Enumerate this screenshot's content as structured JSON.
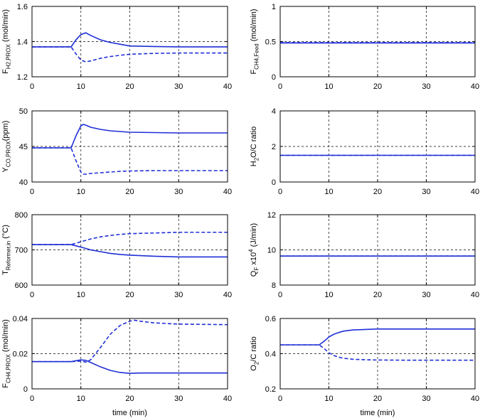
{
  "chart_data": [
    {
      "type": "line",
      "xlim": [
        0,
        40
      ],
      "ylim": [
        1.2,
        1.6
      ],
      "xticks": [
        "0",
        "10",
        "20",
        "30",
        "40"
      ],
      "yticks": [
        "1.2",
        "1.4",
        "1.6"
      ],
      "ylabel": "F_{H2,PROX} (mol/min)",
      "xlabel": "",
      "grid": true,
      "color": "#1f2fd6",
      "series": [
        {
          "style": "solid",
          "x": [
            0,
            8,
            9,
            10,
            11,
            12,
            14,
            16,
            18,
            20,
            25,
            30,
            40
          ],
          "y": [
            1.37,
            1.37,
            1.41,
            1.44,
            1.45,
            1.435,
            1.41,
            1.395,
            1.385,
            1.375,
            1.372,
            1.37,
            1.37
          ]
        },
        {
          "style": "dashed",
          "x": [
            0,
            8,
            9,
            10,
            11,
            12,
            14,
            16,
            18,
            20,
            25,
            30,
            40
          ],
          "y": [
            1.37,
            1.37,
            1.33,
            1.295,
            1.285,
            1.29,
            1.305,
            1.315,
            1.322,
            1.328,
            1.333,
            1.335,
            1.335
          ]
        }
      ]
    },
    {
      "type": "line",
      "xlim": [
        0,
        40
      ],
      "ylim": [
        0,
        1
      ],
      "xticks": [
        "0",
        "10",
        "20",
        "30",
        "40"
      ],
      "yticks": [
        "0",
        "0.5",
        "1"
      ],
      "ylabel": "F_{CH4,Feed} (mol/min)",
      "xlabel": "",
      "grid": true,
      "color": "#1f2fd6",
      "series": [
        {
          "style": "solid",
          "x": [
            0,
            40
          ],
          "y": [
            0.48,
            0.48
          ]
        },
        {
          "style": "dashed",
          "x": [
            0,
            40
          ],
          "y": [
            0.485,
            0.485
          ]
        }
      ]
    },
    {
      "type": "line",
      "xlim": [
        0,
        40
      ],
      "ylim": [
        40,
        50
      ],
      "xticks": [
        "0",
        "10",
        "20",
        "30",
        "40"
      ],
      "yticks": [
        "40",
        "45",
        "50"
      ],
      "ylabel": "Y_{CO,PROX}(ppm)",
      "xlabel": "",
      "grid": true,
      "color": "#1f2fd6",
      "series": [
        {
          "style": "solid",
          "x": [
            0,
            8,
            9,
            10,
            10.5,
            11,
            12,
            14,
            16,
            18,
            20,
            25,
            30,
            40
          ],
          "y": [
            44.8,
            44.8,
            46.5,
            47.9,
            48.1,
            48.0,
            47.7,
            47.4,
            47.2,
            47.1,
            47.0,
            46.95,
            46.9,
            46.9
          ]
        },
        {
          "style": "dashed",
          "x": [
            0,
            8,
            9,
            10,
            10.5,
            11,
            12,
            14,
            16,
            18,
            20,
            25,
            30,
            40
          ],
          "y": [
            44.8,
            44.8,
            43.0,
            41.4,
            41.1,
            41.1,
            41.2,
            41.3,
            41.4,
            41.5,
            41.55,
            41.6,
            41.6,
            41.6
          ]
        }
      ]
    },
    {
      "type": "line",
      "xlim": [
        0,
        40
      ],
      "ylim": [
        0,
        4
      ],
      "xticks": [
        "0",
        "10",
        "20",
        "30",
        "40"
      ],
      "yticks": [
        "0",
        "2",
        "4"
      ],
      "ylabel": "H_2O/C ratio",
      "xlabel": "",
      "grid": true,
      "color": "#1f2fd6",
      "series": [
        {
          "style": "solid",
          "x": [
            0,
            40
          ],
          "y": [
            1.5,
            1.5
          ]
        },
        {
          "style": "dashed",
          "x": [
            0,
            40
          ],
          "y": [
            1.5,
            1.5
          ]
        }
      ]
    },
    {
      "type": "line",
      "xlim": [
        0,
        40
      ],
      "ylim": [
        600,
        800
      ],
      "xticks": [
        "0",
        "10",
        "20",
        "30",
        "40"
      ],
      "yticks": [
        "600",
        "700",
        "800"
      ],
      "ylabel": "T_{Reformer,in} (°C)",
      "xlabel": "",
      "grid": true,
      "color": "#1f2fd6",
      "series": [
        {
          "style": "solid",
          "x": [
            0,
            8,
            10,
            12,
            14,
            16,
            18,
            20,
            25,
            30,
            40
          ],
          "y": [
            715,
            715,
            708,
            700,
            695,
            690,
            687,
            685,
            682,
            680,
            680
          ]
        },
        {
          "style": "dashed",
          "x": [
            0,
            8,
            10,
            12,
            14,
            16,
            18,
            20,
            25,
            30,
            40
          ],
          "y": [
            715,
            715,
            723,
            731,
            737,
            741,
            744,
            746,
            748,
            750,
            750
          ]
        }
      ]
    },
    {
      "type": "line",
      "xlim": [
        0,
        40
      ],
      "ylim": [
        8,
        12
      ],
      "xticks": [
        "0",
        "10",
        "20",
        "30",
        "40"
      ],
      "yticks": [
        "8",
        "10",
        "12"
      ],
      "ylabel": "Q_F x10^4 (J/min)",
      "xlabel": "",
      "grid": true,
      "color": "#1f2fd6",
      "series": [
        {
          "style": "solid",
          "x": [
            0,
            40
          ],
          "y": [
            9.65,
            9.65
          ]
        },
        {
          "style": "dashed",
          "x": [
            0,
            40
          ],
          "y": [
            9.65,
            9.65
          ]
        }
      ]
    },
    {
      "type": "line",
      "xlim": [
        0,
        40
      ],
      "ylim": [
        0,
        0.04
      ],
      "xticks": [
        "0",
        "10",
        "20",
        "30",
        "40"
      ],
      "yticks": [
        "0",
        "0.02",
        "0.04"
      ],
      "ylabel": "F_{CH4,PROX} (mol/min)",
      "xlabel": "time (min)",
      "grid": true,
      "color": "#1f2fd6",
      "series": [
        {
          "style": "solid",
          "x": [
            0,
            8,
            10,
            11,
            12,
            14,
            16,
            18,
            20,
            22,
            25,
            30,
            40
          ],
          "y": [
            0.0155,
            0.0155,
            0.0165,
            0.0162,
            0.015,
            0.0125,
            0.0105,
            0.0093,
            0.0088,
            0.009,
            0.009,
            0.009,
            0.009
          ]
        },
        {
          "style": "dashed",
          "x": [
            0,
            8,
            10,
            11,
            12,
            14,
            16,
            18,
            20,
            21,
            22,
            25,
            30,
            40
          ],
          "y": [
            0.0155,
            0.0155,
            0.0158,
            0.0152,
            0.0165,
            0.0235,
            0.031,
            0.036,
            0.0385,
            0.039,
            0.0385,
            0.0375,
            0.0368,
            0.0365
          ]
        }
      ]
    },
    {
      "type": "line",
      "xlim": [
        0,
        40
      ],
      "ylim": [
        0.2,
        0.6
      ],
      "xticks": [
        "0",
        "10",
        "20",
        "30",
        "40"
      ],
      "yticks": [
        "0.2",
        "0.4",
        "0.6"
      ],
      "ylabel": "O_2/C ratio",
      "xlabel": "time (min)",
      "grid": true,
      "color": "#1f2fd6",
      "series": [
        {
          "style": "solid",
          "x": [
            0,
            8,
            9,
            10,
            11,
            12,
            13,
            15,
            18,
            20,
            25,
            30,
            40
          ],
          "y": [
            0.45,
            0.45,
            0.47,
            0.495,
            0.51,
            0.52,
            0.528,
            0.535,
            0.538,
            0.54,
            0.54,
            0.54,
            0.54
          ]
        },
        {
          "style": "dashed",
          "x": [
            0,
            8,
            9,
            10,
            11,
            12,
            13,
            15,
            18,
            20,
            25,
            30,
            40
          ],
          "y": [
            0.45,
            0.45,
            0.43,
            0.405,
            0.39,
            0.38,
            0.374,
            0.368,
            0.365,
            0.364,
            0.363,
            0.363,
            0.363
          ]
        }
      ]
    }
  ]
}
